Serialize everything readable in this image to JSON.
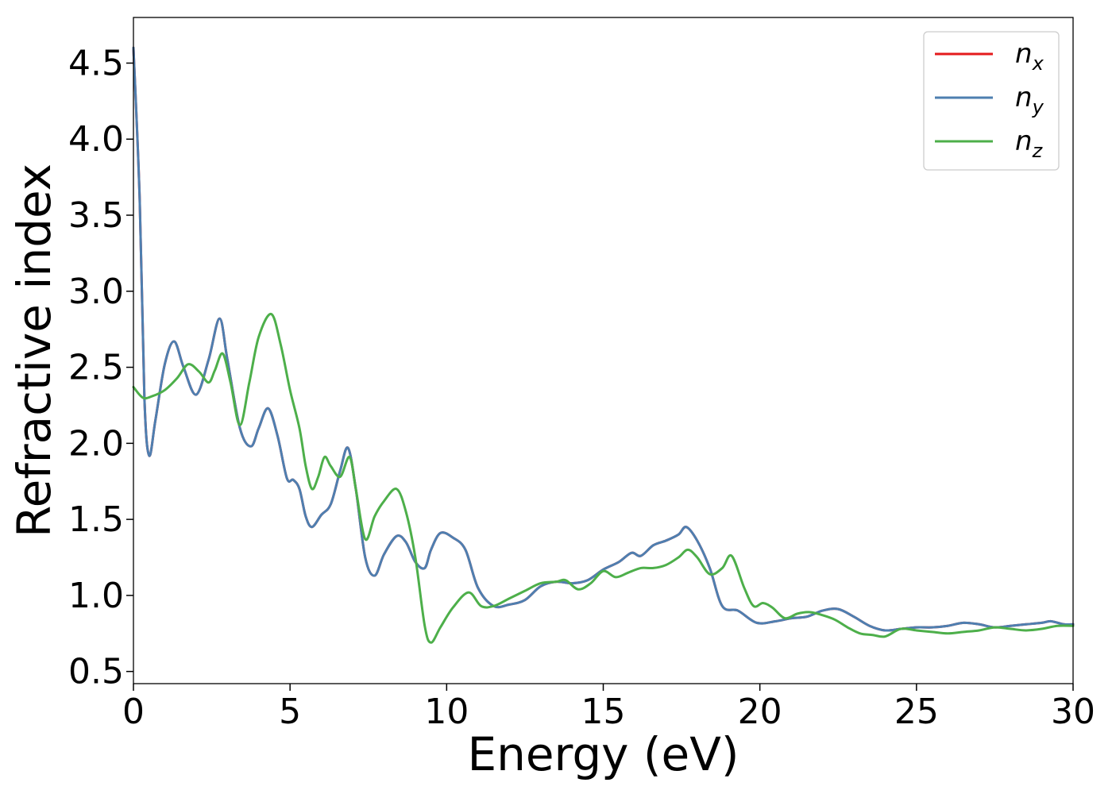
{
  "chart_data": {
    "type": "line",
    "title": "",
    "xlabel": "Energy (eV)",
    "ylabel": "Refractive index",
    "xlim": [
      0,
      30
    ],
    "ylim": [
      0.42,
      4.8
    ],
    "xticks": [
      0,
      5,
      10,
      15,
      20,
      25,
      30
    ],
    "xtick_labels": [
      "0",
      "5",
      "10",
      "15",
      "20",
      "25",
      "30"
    ],
    "yticks": [
      0.5,
      1.0,
      1.5,
      2.0,
      2.5,
      3.0,
      3.5,
      4.0,
      4.5
    ],
    "ytick_labels": [
      "0.5",
      "1.0",
      "1.5",
      "2.0",
      "2.5",
      "3.0",
      "3.5",
      "4.0",
      "4.5"
    ],
    "grid": false,
    "legend_position": "top-right",
    "series": [
      {
        "name": "n",
        "subscript": "x",
        "color": "#e41a1c",
        "points": [
          [
            0,
            4.6
          ],
          [
            0.2,
            3.6
          ],
          [
            0.35,
            2.3
          ],
          [
            0.5,
            1.92
          ],
          [
            0.7,
            2.15
          ],
          [
            1.0,
            2.52
          ],
          [
            1.3,
            2.67
          ],
          [
            1.6,
            2.5
          ],
          [
            2.0,
            2.32
          ],
          [
            2.4,
            2.55
          ],
          [
            2.75,
            2.82
          ],
          [
            3.0,
            2.55
          ],
          [
            3.4,
            2.1
          ],
          [
            3.75,
            1.98
          ],
          [
            4.0,
            2.1
          ],
          [
            4.3,
            2.23
          ],
          [
            4.6,
            2.05
          ],
          [
            4.9,
            1.77
          ],
          [
            5.1,
            1.76
          ],
          [
            5.3,
            1.7
          ],
          [
            5.5,
            1.52
          ],
          [
            5.7,
            1.45
          ],
          [
            6.0,
            1.53
          ],
          [
            6.3,
            1.6
          ],
          [
            6.6,
            1.82
          ],
          [
            6.85,
            1.97
          ],
          [
            7.1,
            1.7
          ],
          [
            7.4,
            1.25
          ],
          [
            7.7,
            1.13
          ],
          [
            8.0,
            1.27
          ],
          [
            8.4,
            1.39
          ],
          [
            8.7,
            1.35
          ],
          [
            9.0,
            1.22
          ],
          [
            9.3,
            1.18
          ],
          [
            9.5,
            1.3
          ],
          [
            9.8,
            1.41
          ],
          [
            10.2,
            1.38
          ],
          [
            10.6,
            1.3
          ],
          [
            11.0,
            1.05
          ],
          [
            11.5,
            0.93
          ],
          [
            12.0,
            0.94
          ],
          [
            12.5,
            0.97
          ],
          [
            13.0,
            1.06
          ],
          [
            13.5,
            1.09
          ],
          [
            14.0,
            1.08
          ],
          [
            14.5,
            1.1
          ],
          [
            15.0,
            1.17
          ],
          [
            15.5,
            1.22
          ],
          [
            15.9,
            1.28
          ],
          [
            16.2,
            1.26
          ],
          [
            16.6,
            1.33
          ],
          [
            17.0,
            1.36
          ],
          [
            17.4,
            1.4
          ],
          [
            17.65,
            1.45
          ],
          [
            18.0,
            1.36
          ],
          [
            18.4,
            1.18
          ],
          [
            18.8,
            0.93
          ],
          [
            19.3,
            0.9
          ],
          [
            19.9,
            0.82
          ],
          [
            20.5,
            0.83
          ],
          [
            21.0,
            0.85
          ],
          [
            21.5,
            0.86
          ],
          [
            22.0,
            0.9
          ],
          [
            22.5,
            0.91
          ],
          [
            23.0,
            0.86
          ],
          [
            23.5,
            0.8
          ],
          [
            24.0,
            0.77
          ],
          [
            24.5,
            0.78
          ],
          [
            25.0,
            0.79
          ],
          [
            25.5,
            0.79
          ],
          [
            26.0,
            0.8
          ],
          [
            26.5,
            0.82
          ],
          [
            27.0,
            0.81
          ],
          [
            27.5,
            0.79
          ],
          [
            28.0,
            0.8
          ],
          [
            28.5,
            0.81
          ],
          [
            29.0,
            0.82
          ],
          [
            29.3,
            0.83
          ],
          [
            29.7,
            0.81
          ],
          [
            30.0,
            0.81
          ]
        ]
      },
      {
        "name": "n",
        "subscript": "y",
        "color": "#4e7fb0",
        "points": [
          [
            0,
            4.6
          ],
          [
            0.2,
            3.6
          ],
          [
            0.35,
            2.3
          ],
          [
            0.5,
            1.92
          ],
          [
            0.7,
            2.15
          ],
          [
            1.0,
            2.52
          ],
          [
            1.3,
            2.67
          ],
          [
            1.6,
            2.5
          ],
          [
            2.0,
            2.32
          ],
          [
            2.4,
            2.55
          ],
          [
            2.75,
            2.82
          ],
          [
            3.0,
            2.55
          ],
          [
            3.4,
            2.1
          ],
          [
            3.75,
            1.98
          ],
          [
            4.0,
            2.1
          ],
          [
            4.3,
            2.23
          ],
          [
            4.6,
            2.05
          ],
          [
            4.9,
            1.77
          ],
          [
            5.1,
            1.76
          ],
          [
            5.3,
            1.7
          ],
          [
            5.5,
            1.52
          ],
          [
            5.7,
            1.45
          ],
          [
            6.0,
            1.53
          ],
          [
            6.3,
            1.6
          ],
          [
            6.6,
            1.82
          ],
          [
            6.85,
            1.97
          ],
          [
            7.1,
            1.7
          ],
          [
            7.4,
            1.25
          ],
          [
            7.7,
            1.13
          ],
          [
            8.0,
            1.27
          ],
          [
            8.4,
            1.39
          ],
          [
            8.7,
            1.35
          ],
          [
            9.0,
            1.22
          ],
          [
            9.3,
            1.18
          ],
          [
            9.5,
            1.3
          ],
          [
            9.8,
            1.41
          ],
          [
            10.2,
            1.38
          ],
          [
            10.6,
            1.3
          ],
          [
            11.0,
            1.05
          ],
          [
            11.5,
            0.93
          ],
          [
            12.0,
            0.94
          ],
          [
            12.5,
            0.97
          ],
          [
            13.0,
            1.06
          ],
          [
            13.5,
            1.09
          ],
          [
            14.0,
            1.08
          ],
          [
            14.5,
            1.1
          ],
          [
            15.0,
            1.17
          ],
          [
            15.5,
            1.22
          ],
          [
            15.9,
            1.28
          ],
          [
            16.2,
            1.26
          ],
          [
            16.6,
            1.33
          ],
          [
            17.0,
            1.36
          ],
          [
            17.4,
            1.4
          ],
          [
            17.65,
            1.45
          ],
          [
            18.0,
            1.36
          ],
          [
            18.4,
            1.18
          ],
          [
            18.8,
            0.93
          ],
          [
            19.3,
            0.9
          ],
          [
            19.9,
            0.82
          ],
          [
            20.5,
            0.83
          ],
          [
            21.0,
            0.85
          ],
          [
            21.5,
            0.86
          ],
          [
            22.0,
            0.9
          ],
          [
            22.5,
            0.91
          ],
          [
            23.0,
            0.86
          ],
          [
            23.5,
            0.8
          ],
          [
            24.0,
            0.77
          ],
          [
            24.5,
            0.78
          ],
          [
            25.0,
            0.79
          ],
          [
            25.5,
            0.79
          ],
          [
            26.0,
            0.8
          ],
          [
            26.5,
            0.82
          ],
          [
            27.0,
            0.81
          ],
          [
            27.5,
            0.79
          ],
          [
            28.0,
            0.8
          ],
          [
            28.5,
            0.81
          ],
          [
            29.0,
            0.82
          ],
          [
            29.3,
            0.83
          ],
          [
            29.7,
            0.81
          ],
          [
            30.0,
            0.81
          ]
        ]
      },
      {
        "name": "n",
        "subscript": "z",
        "color": "#4daf4a",
        "points": [
          [
            0,
            2.37
          ],
          [
            0.3,
            2.3
          ],
          [
            0.6,
            2.31
          ],
          [
            1.0,
            2.35
          ],
          [
            1.4,
            2.43
          ],
          [
            1.75,
            2.52
          ],
          [
            2.1,
            2.47
          ],
          [
            2.4,
            2.4
          ],
          [
            2.6,
            2.48
          ],
          [
            2.85,
            2.59
          ],
          [
            3.1,
            2.4
          ],
          [
            3.4,
            2.12
          ],
          [
            3.7,
            2.4
          ],
          [
            4.0,
            2.7
          ],
          [
            4.4,
            2.85
          ],
          [
            4.7,
            2.65
          ],
          [
            5.0,
            2.35
          ],
          [
            5.3,
            2.1
          ],
          [
            5.5,
            1.85
          ],
          [
            5.7,
            1.7
          ],
          [
            5.9,
            1.78
          ],
          [
            6.1,
            1.91
          ],
          [
            6.3,
            1.85
          ],
          [
            6.6,
            1.78
          ],
          [
            6.9,
            1.91
          ],
          [
            7.1,
            1.7
          ],
          [
            7.4,
            1.37
          ],
          [
            7.7,
            1.52
          ],
          [
            8.0,
            1.62
          ],
          [
            8.4,
            1.7
          ],
          [
            8.7,
            1.55
          ],
          [
            9.0,
            1.25
          ],
          [
            9.3,
            0.8
          ],
          [
            9.5,
            0.69
          ],
          [
            9.8,
            0.79
          ],
          [
            10.2,
            0.92
          ],
          [
            10.7,
            1.02
          ],
          [
            11.1,
            0.93
          ],
          [
            11.5,
            0.93
          ],
          [
            12.0,
            0.98
          ],
          [
            12.5,
            1.03
          ],
          [
            13.0,
            1.08
          ],
          [
            13.5,
            1.09
          ],
          [
            13.8,
            1.1
          ],
          [
            14.2,
            1.04
          ],
          [
            14.6,
            1.08
          ],
          [
            15.0,
            1.16
          ],
          [
            15.4,
            1.12
          ],
          [
            15.8,
            1.15
          ],
          [
            16.2,
            1.18
          ],
          [
            16.6,
            1.18
          ],
          [
            17.0,
            1.2
          ],
          [
            17.4,
            1.25
          ],
          [
            17.7,
            1.3
          ],
          [
            18.0,
            1.25
          ],
          [
            18.4,
            1.14
          ],
          [
            18.8,
            1.18
          ],
          [
            19.1,
            1.26
          ],
          [
            19.5,
            1.05
          ],
          [
            19.8,
            0.93
          ],
          [
            20.1,
            0.95
          ],
          [
            20.4,
            0.92
          ],
          [
            20.8,
            0.85
          ],
          [
            21.2,
            0.88
          ],
          [
            21.6,
            0.89
          ],
          [
            22.0,
            0.87
          ],
          [
            22.4,
            0.84
          ],
          [
            22.8,
            0.79
          ],
          [
            23.2,
            0.75
          ],
          [
            23.6,
            0.74
          ],
          [
            24.0,
            0.73
          ],
          [
            24.5,
            0.78
          ],
          [
            25.0,
            0.77
          ],
          [
            25.5,
            0.76
          ],
          [
            26.0,
            0.75
          ],
          [
            26.5,
            0.76
          ],
          [
            27.0,
            0.77
          ],
          [
            27.5,
            0.79
          ],
          [
            28.0,
            0.78
          ],
          [
            28.5,
            0.77
          ],
          [
            29.0,
            0.78
          ],
          [
            29.5,
            0.8
          ],
          [
            30.0,
            0.8
          ]
        ]
      }
    ]
  }
}
